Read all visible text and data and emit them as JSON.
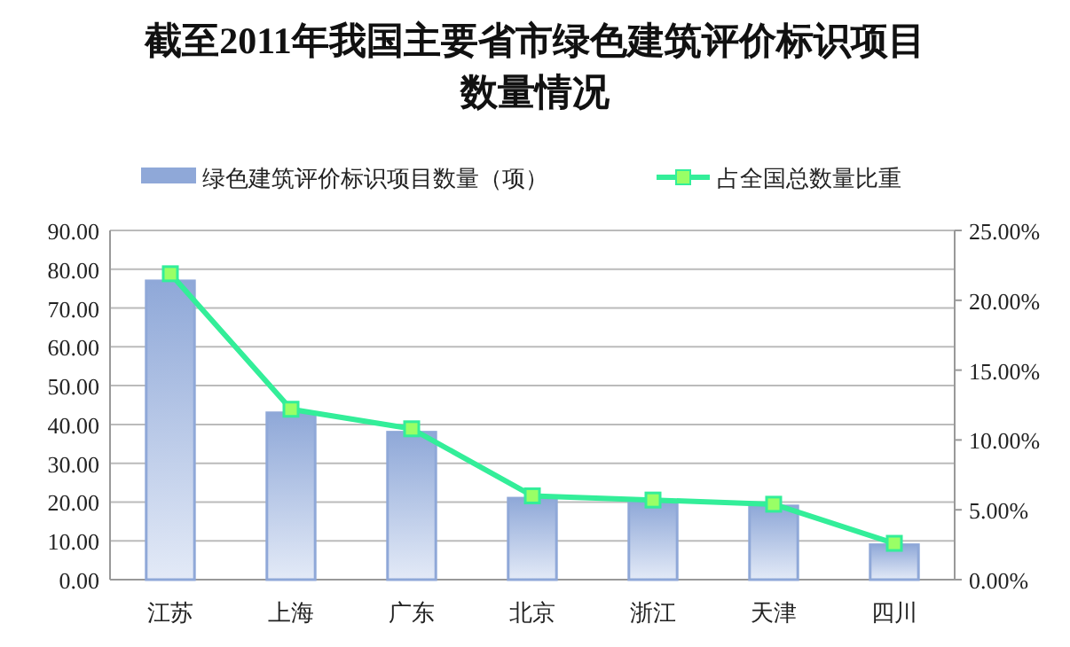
{
  "chart_data": {
    "type": "bar",
    "title": "截至2011年我国主要省市绿色建筑评价标识项目数量情况",
    "categories": [
      "江苏",
      "上海",
      "广东",
      "北京",
      "浙江",
      "天津",
      "四川"
    ],
    "series": [
      {
        "name": "绿色建筑评价标识项目数量（项）",
        "color": "#8fa8d8",
        "values": [
          77,
          43,
          38,
          21,
          20,
          19,
          9
        ]
      },
      {
        "name": "占全国总数量比重",
        "type": "line",
        "axis": "y2",
        "color": "#33ee99",
        "marker": "square",
        "values": [
          21.9,
          12.2,
          10.8,
          6.0,
          5.7,
          5.4,
          2.6
        ]
      }
    ],
    "ylim": [
      0,
      90
    ],
    "yticks": [
      {
        "value": 0,
        "label": "0.00"
      },
      {
        "value": 10,
        "label": "10.00"
      },
      {
        "value": 20,
        "label": "20.00"
      },
      {
        "value": 30,
        "label": "30.00"
      },
      {
        "value": 40,
        "label": "40.00"
      },
      {
        "value": 50,
        "label": "50.00"
      },
      {
        "value": 60,
        "label": "60.00"
      },
      {
        "value": 70,
        "label": "70.00"
      },
      {
        "value": 80,
        "label": "80.00"
      },
      {
        "value": 90,
        "label": "90.00"
      }
    ],
    "y2lim": [
      0,
      25
    ],
    "y2ticks": [
      {
        "value": 0,
        "label": "0.00%"
      },
      {
        "value": 5,
        "label": "5.00%"
      },
      {
        "value": 10,
        "label": "10.00%"
      },
      {
        "value": 15,
        "label": "15.00%"
      },
      {
        "value": 20,
        "label": "20.00%"
      },
      {
        "value": 25,
        "label": "25.00%"
      }
    ],
    "grid": "y",
    "legend": "top"
  }
}
